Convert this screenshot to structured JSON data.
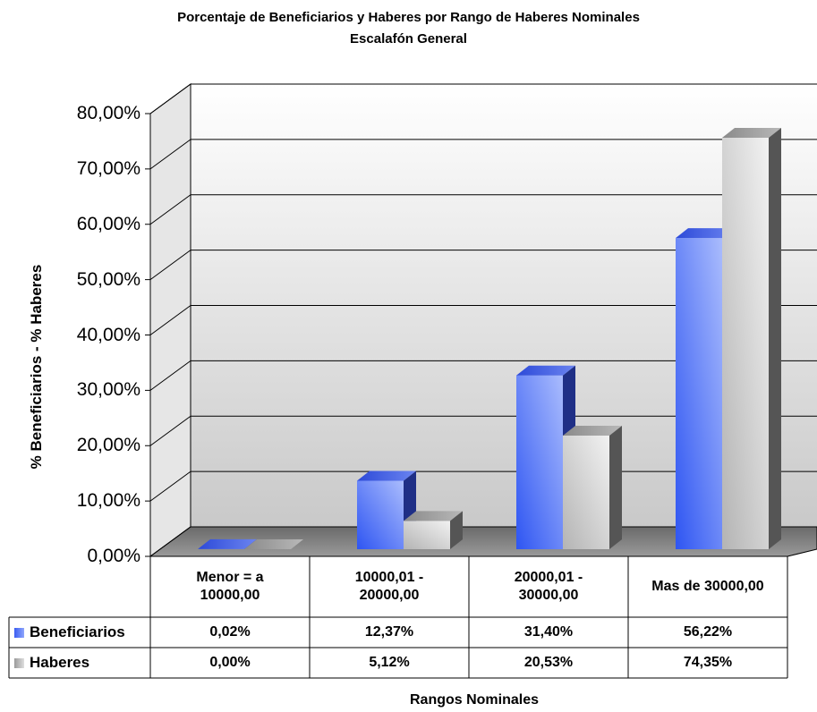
{
  "chart_data": {
    "type": "bar",
    "title": "Porcentaje de Beneficiarios y Haberes por Rango de Haberes Nominales",
    "subtitle": "Escalafón General",
    "ylabel": "% Beneficiarios - % Haberes",
    "xlabel": "Rangos Nominales",
    "ylim": [
      0,
      80
    ],
    "yticks": [
      "0,00%",
      "10,00%",
      "20,00%",
      "30,00%",
      "40,00%",
      "50,00%",
      "60,00%",
      "70,00%",
      "80,00%"
    ],
    "grid": true,
    "categories": [
      {
        "line1": "Menor = a",
        "line2": "10000,00"
      },
      {
        "line1": "10000,01 -",
        "line2": "20000,00"
      },
      {
        "line1": "20000,01 -",
        "line2": "30000,00"
      },
      {
        "line1": "Mas de 30000,00",
        "line2": ""
      }
    ],
    "series": [
      {
        "name": "Beneficiarios",
        "color": "#5b7cf5",
        "values": [
          0.02,
          12.37,
          31.4,
          56.22
        ],
        "labels": [
          "0,02%",
          "12,37%",
          "31,40%",
          "56,22%"
        ]
      },
      {
        "name": "Haberes",
        "color": "#c8c8c8",
        "values": [
          0.0,
          5.12,
          20.53,
          74.35
        ],
        "labels": [
          "0,00%",
          "5,12%",
          "20,53%",
          "74,35%"
        ]
      }
    ]
  }
}
